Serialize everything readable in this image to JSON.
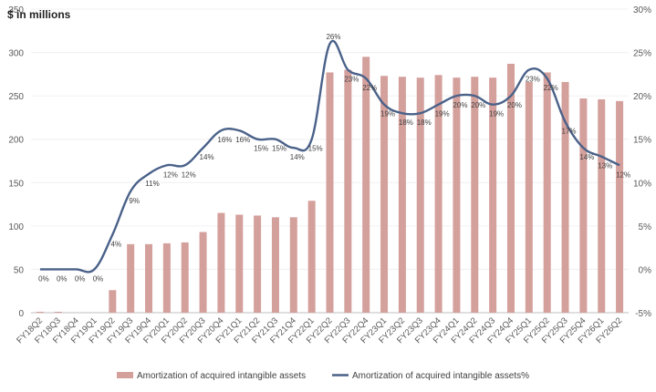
{
  "chart_data": {
    "type": "bar+line",
    "y_label_left": "$ in millions",
    "y_left_ticks": [
      "0",
      "50",
      "100",
      "150",
      "200",
      "250",
      "300",
      "350"
    ],
    "y_left_range": [
      0,
      350
    ],
    "y_right_ticks": [
      "-5%",
      "0%",
      "5%",
      "10%",
      "15%",
      "20%",
      "25%",
      "30%"
    ],
    "y_right_range": [
      -5,
      30
    ],
    "categories": [
      "FY18Q2",
      "FY18Q3",
      "FY18Q4",
      "FY19Q1",
      "FY19Q2",
      "FY19Q3",
      "FY19Q4",
      "FY20Q1",
      "FY20Q2",
      "FY20Q3",
      "FY20Q4",
      "FY21Q1",
      "FY21Q2",
      "FY21Q3",
      "FY21Q4",
      "FY22Q1",
      "FY22Q2",
      "FY22Q3",
      "FY22Q4",
      "FY23Q1",
      "FY23Q2",
      "FY23Q3",
      "FY23Q4",
      "FY24Q1",
      "FY24Q2",
      "FY24Q3",
      "FY24Q4",
      "FY25Q1",
      "FY25Q2",
      "FY25Q3",
      "FY25Q4",
      "FY26Q1",
      "FY26Q2"
    ],
    "series": [
      {
        "name": "Amortization of acquired intangible assets",
        "type": "bar",
        "axis": "left",
        "color": "#d4a09c",
        "values": [
          1,
          1,
          0,
          0,
          26,
          79,
          79,
          80,
          81,
          93,
          115,
          113,
          112,
          110,
          110,
          129,
          277,
          280,
          295,
          273,
          272,
          271,
          274,
          271,
          272,
          271,
          287,
          266,
          277,
          266,
          247,
          246,
          244
        ]
      },
      {
        "name": "Amortization of acquired intangible assets%",
        "type": "line",
        "axis": "right",
        "color": "#4a6189",
        "values": [
          0,
          0,
          0,
          0,
          4,
          9,
          11,
          12,
          12,
          14,
          16,
          16,
          15,
          15,
          14,
          15,
          26,
          23,
          22,
          19,
          18,
          18,
          19,
          20,
          20,
          19,
          20,
          23,
          22,
          17,
          14,
          13,
          12
        ],
        "labels": [
          "0%",
          "0%",
          "0%",
          "0%",
          "4%",
          "9%",
          "11%",
          "12%",
          "12%",
          "14%",
          "16%",
          "16%",
          "15%",
          "15%",
          "14%",
          "15%",
          "26%",
          "23%",
          "22%",
          "19%",
          "18%",
          "18%",
          "19%",
          "20%",
          "20%",
          "19%",
          "20%",
          "23%",
          "22%",
          "17%",
          "14%",
          "13%",
          "12%"
        ]
      }
    ],
    "legend": [
      "Amortization of acquired intangible assets",
      "Amortization of acquired intangible assets%"
    ],
    "legend_position": "bottom"
  }
}
